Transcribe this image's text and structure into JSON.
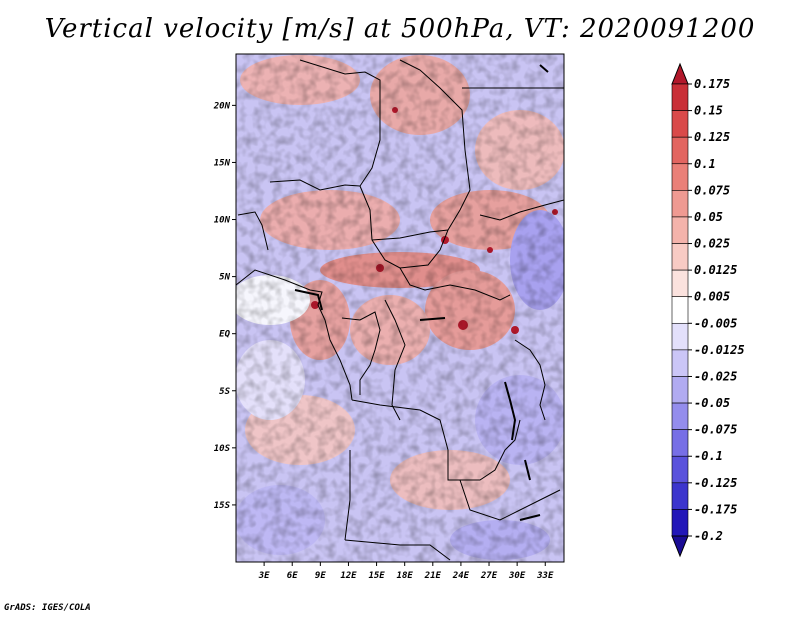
{
  "chart_data": {
    "type": "heatmap",
    "title": "Vertical velocity [m/s] at 500hPa, VT: 2020091200",
    "variable": "Vertical velocity",
    "units": "m/s",
    "level": "500hPa",
    "valid_time": "2020091200",
    "x_ticks": [
      "3E",
      "6E",
      "9E",
      "12E",
      "15E",
      "18E",
      "21E",
      "24E",
      "27E",
      "30E",
      "33E"
    ],
    "x_tick_values": [
      3,
      6,
      9,
      12,
      15,
      18,
      21,
      24,
      27,
      30,
      33
    ],
    "y_ticks": [
      "20N",
      "15N",
      "10N",
      "5N",
      "EQ",
      "5S",
      "10S",
      "15S"
    ],
    "y_tick_values": [
      20,
      15,
      10,
      5,
      0,
      -5,
      -10,
      -15
    ],
    "xlim": [
      0,
      35
    ],
    "ylim": [
      -20,
      24.5
    ],
    "colorbar": {
      "levels": [
        "0.175",
        "0.15",
        "0.125",
        "0.1",
        "0.075",
        "0.05",
        "0.025",
        "0.0125",
        "0.005",
        "-0.005",
        "-0.0125",
        "-0.025",
        "-0.05",
        "-0.075",
        "-0.1",
        "-0.125",
        "-0.175",
        "-0.2"
      ],
      "colors": [
        "#b2182b",
        "#c92f37",
        "#d94a4a",
        "#e26560",
        "#ea8078",
        "#ef9a92",
        "#f4b3ab",
        "#f8cbc4",
        "#fbe2de",
        "#ffffff",
        "#e3e0fb",
        "#cbc6f7",
        "#b1abf1",
        "#948ded",
        "#776fe6",
        "#5a52dc",
        "#3c35cd",
        "#2217b8",
        "#1a0c95"
      ]
    }
  },
  "credit": "GrADS: IGES/COLA"
}
